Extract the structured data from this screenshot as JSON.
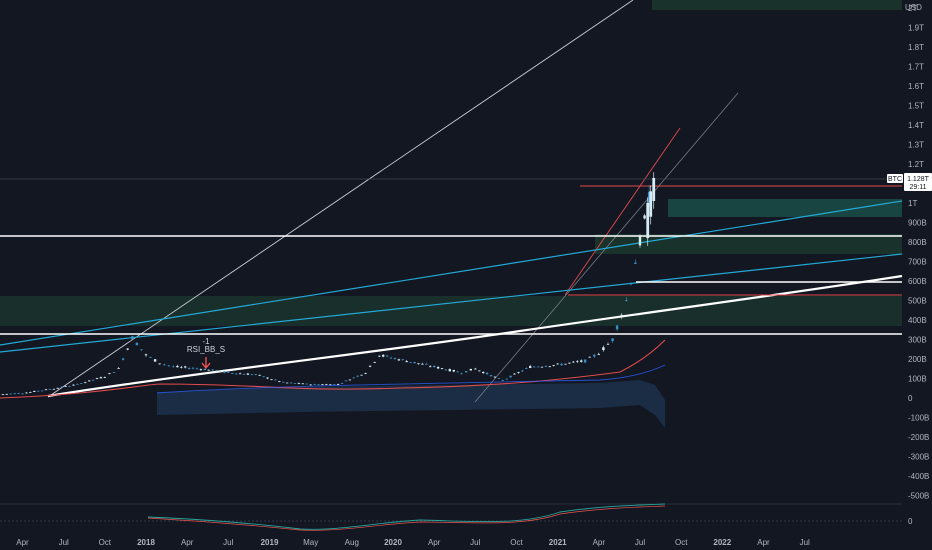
{
  "chart_data": {
    "type": "candlestick",
    "currency_label": "USD",
    "symbol_tag": "BTC",
    "last_price_label": "1.128T",
    "countdown_label": "29:11",
    "y_tick_labels": [
      "2T",
      "1.9T",
      "1.8T",
      "1.7T",
      "1.6T",
      "1.5T",
      "1.4T",
      "1.3T",
      "1.2T",
      "1.1T",
      "1T",
      "900B",
      "800B",
      "700B",
      "600B",
      "500B",
      "400B",
      "300B",
      "200B",
      "100B",
      "0",
      "-100B",
      "-200B",
      "-300B",
      "-400B",
      "-500B"
    ],
    "y_tick_values": [
      2000,
      1900,
      1800,
      1700,
      1600,
      1500,
      1400,
      1300,
      1200,
      1100,
      1000,
      900,
      800,
      700,
      600,
      500,
      400,
      300,
      200,
      100,
      0,
      -100,
      -200,
      -300,
      -400,
      -500
    ],
    "ylim": [
      -550,
      2020
    ],
    "x_tick_labels": [
      "Apr",
      "Jul",
      "Oct",
      "2018",
      "Apr",
      "Jul",
      "2019",
      "May",
      "Aug",
      "2020",
      "Apr",
      "Jul",
      "Oct",
      "2021",
      "Apr",
      "Jul",
      "Oct",
      "2022",
      "Apr",
      "Jul"
    ],
    "x_tick_bold": [
      "2018",
      "2019",
      "2020",
      "2021",
      "2022"
    ],
    "oscillator_tick_label": "0",
    "annotation": {
      "value": "-1",
      "label": "RSI_BB_S"
    },
    "series": [
      {
        "name": "",
        "x": [
          "2017-02",
          "2017-04",
          "2017-06",
          "2017-08",
          "2017-10",
          "2017-11",
          "2017-12",
          "2018-01",
          "2018-02",
          "2018-03",
          "2018-05",
          "2018-07",
          "2018-09",
          "2018-11",
          "2019-01",
          "2019-03",
          "2019-05",
          "2019-06",
          "2019-08",
          "2019-10",
          "2019-12",
          "2020-01",
          "2020-03",
          "2020-05",
          "2020-07",
          "2020-09",
          "2020-10",
          "2020-11",
          "2020-12",
          "2021-01",
          "2021-02"
        ],
        "y": [
          18,
          25,
          45,
          70,
          110,
          150,
          310,
          220,
          180,
          160,
          150,
          130,
          120,
          80,
          70,
          70,
          130,
          220,
          190,
          160,
          130,
          150,
          90,
          160,
          170,
          190,
          230,
          300,
          500,
          800,
          1128
        ]
      }
    ]
  }
}
